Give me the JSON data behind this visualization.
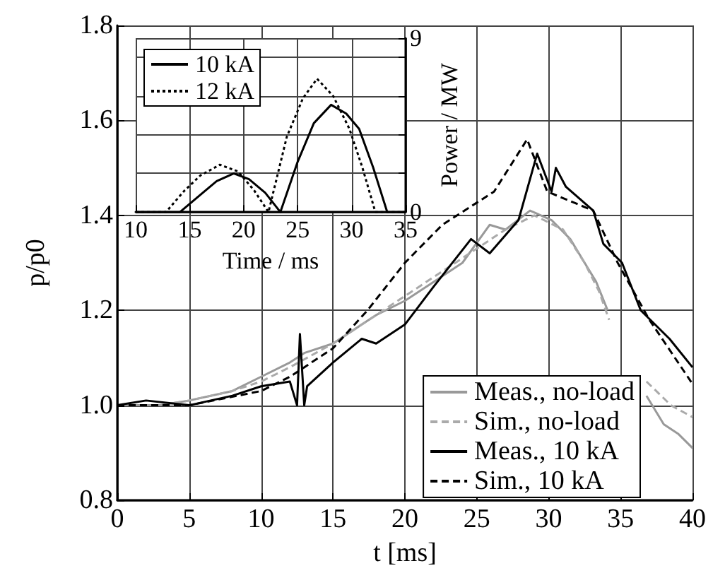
{
  "chart_data": [
    {
      "type": "line",
      "xlabel": "t [ms]",
      "ylabel": "p/p0",
      "xlim": [
        0,
        40
      ],
      "xticks": [
        0,
        5,
        10,
        15,
        20,
        25,
        30,
        35,
        40
      ],
      "ylim": [
        0.8,
        1.8
      ],
      "yticks": [
        {
          "value": 0.8,
          "label": "0.8"
        },
        {
          "value": 1,
          "label": "1.0"
        },
        {
          "value": 1.2,
          "label": "1.2"
        },
        {
          "value": 1.4,
          "label": "1.4"
        },
        {
          "value": 1.6,
          "label": "1.6"
        },
        {
          "value": 1.8,
          "label": "1.8"
        }
      ],
      "grid": true,
      "legend": "bottom right",
      "series": [
        {
          "name": "Meas., no-load",
          "color": "#999999",
          "line_style": "solid",
          "x": [
            0,
            3,
            5,
            8,
            10,
            12,
            13,
            15,
            17,
            18,
            20,
            22,
            24,
            25.9,
            27,
            28.7,
            30.2,
            31.5,
            32.5,
            33.3,
            34.1,
            35,
            36.8,
            38,
            39,
            40
          ],
          "values": [
            1.0,
            1.0,
            1.01,
            1.03,
            1.06,
            1.09,
            1.11,
            1.13,
            1.17,
            1.19,
            1.22,
            1.26,
            1.3,
            1.38,
            1.37,
            1.41,
            1.39,
            1.35,
            1.3,
            1.26,
            1.2,
            null,
            1.02,
            0.96,
            0.94,
            0.91
          ]
        },
        {
          "name": "Sim., no-load",
          "color": "#aaaaaa",
          "line_style": "dashed",
          "x": [
            0,
            3,
            5,
            8,
            10,
            12,
            15,
            18,
            20,
            22,
            25,
            27,
            29,
            31,
            32.5,
            33.5,
            34.2,
            35,
            36.8,
            38.5,
            40
          ],
          "values": [
            1.0,
            1.0,
            1.01,
            1.03,
            1.05,
            1.08,
            1.13,
            1.19,
            1.23,
            1.27,
            1.33,
            1.37,
            1.4,
            1.37,
            1.3,
            1.24,
            1.18,
            null,
            1.05,
            1.0,
            0.975
          ]
        },
        {
          "name": "Meas., 10 kA",
          "color": "#000000",
          "line_style": "solid",
          "x": [
            0,
            2,
            5,
            8,
            10,
            12,
            12.5,
            12.7,
            13,
            13.2,
            15,
            17,
            18,
            20,
            22,
            24.6,
            25.9,
            27.9,
            29.2,
            30.2,
            30.5,
            31.2,
            33.1,
            33.8,
            35.1,
            36.4,
            38.4,
            40
          ],
          "values": [
            1.0,
            1.01,
            1.0,
            1.02,
            1.04,
            1.05,
            1.0,
            1.15,
            1.0,
            1.04,
            1.09,
            1.14,
            1.13,
            1.17,
            1.25,
            1.35,
            1.32,
            1.39,
            1.53,
            1.45,
            1.5,
            1.46,
            1.41,
            1.34,
            1.3,
            1.2,
            1.14,
            1.08
          ]
        },
        {
          "name": "Sim., 10 kA",
          "color": "#000000",
          "line_style": "dashed",
          "x": [
            0,
            5,
            10,
            12,
            15,
            17.4,
            20,
            22.6,
            26.2,
            28.5,
            29.9,
            33.1,
            34.8,
            37,
            40
          ],
          "values": [
            1.0,
            1.0,
            1.03,
            1.06,
            1.12,
            1.2,
            1.3,
            1.38,
            1.45,
            1.56,
            1.45,
            1.41,
            1.3,
            1.18,
            1.045
          ]
        }
      ]
    },
    {
      "type": "line",
      "xlabel": "Time / ms",
      "ylabel": "Power / MW",
      "xlim": [
        10,
        35
      ],
      "xticks": [
        10,
        15,
        20,
        25,
        30,
        35
      ],
      "ylim": [
        0,
        9
      ],
      "yticks": [
        0,
        {
          "value": 2,
          "label": null
        },
        {
          "value": 4,
          "label": null
        },
        {
          "value": 6,
          "label": null
        },
        {
          "value": 8,
          "label": null
        },
        9
      ],
      "grid": true,
      "legend": "top left",
      "series": [
        {
          "name": "10 kA",
          "color": "#000000",
          "line_style": "solid",
          "x": [
            10,
            14.1,
            16,
            17.5,
            19.1,
            20.5,
            22,
            23.4,
            25,
            26.5,
            28.1,
            29.5,
            30.7,
            32,
            33.3,
            35
          ],
          "values": [
            0,
            0,
            0.9,
            1.6,
            2.0,
            1.7,
            1.0,
            0,
            2.6,
            4.6,
            5.55,
            5.1,
            4.3,
            2.3,
            0,
            0
          ]
        },
        {
          "name": "12 kA",
          "color": "#000000",
          "line_style": "dotted",
          "x": [
            10,
            12.8,
            14.5,
            16,
            17.8,
            19.5,
            21,
            22.3,
            24,
            25.5,
            26.8,
            28.3,
            29.8,
            31,
            32.2,
            35
          ],
          "values": [
            0,
            0,
            1.1,
            1.9,
            2.45,
            2.1,
            1.1,
            0,
            3.9,
            5.9,
            6.9,
            6.0,
            4.3,
            2.3,
            0,
            0
          ]
        }
      ]
    }
  ]
}
